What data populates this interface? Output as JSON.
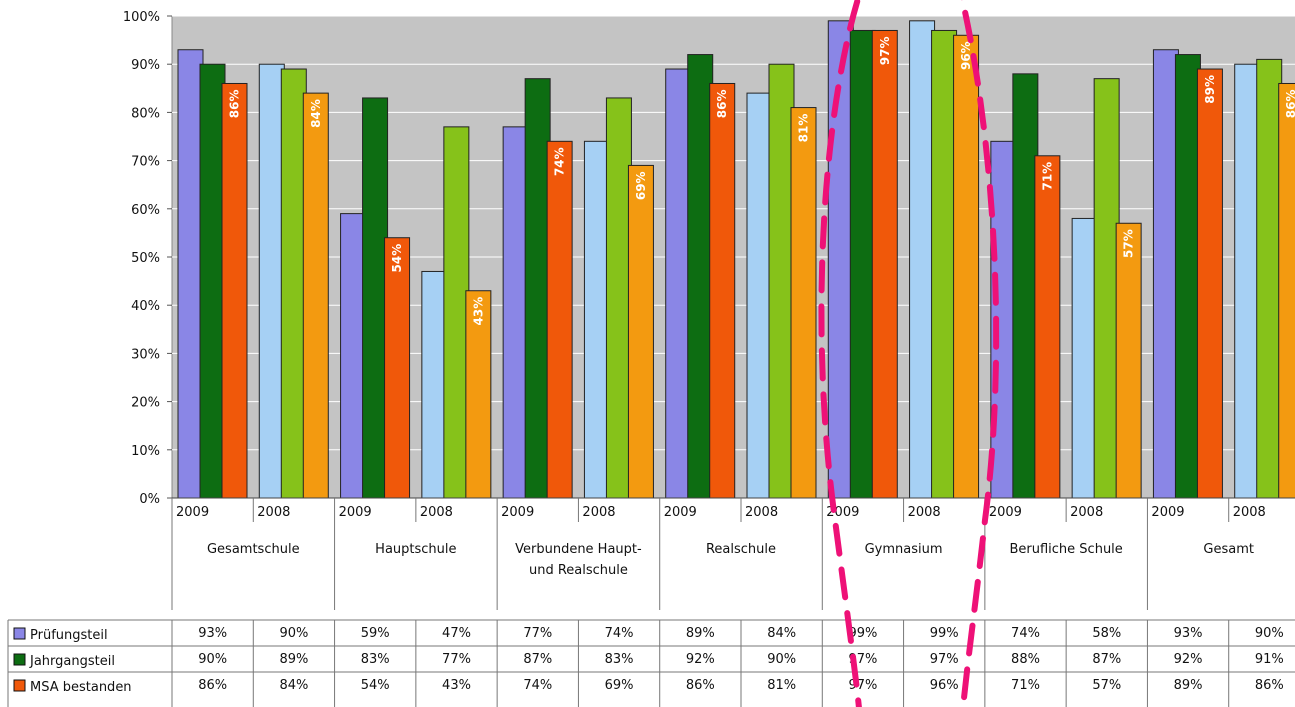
{
  "chart_data": {
    "type": "bar",
    "title": "",
    "xlabel": "",
    "ylabel": "",
    "ylim": [
      0,
      100
    ],
    "y_tick_labels": [
      "0%",
      "10%",
      "20%",
      "30%",
      "40%",
      "50%",
      "60%",
      "70%",
      "80%",
      "90%",
      "100%"
    ],
    "grid": true,
    "groups": [
      {
        "label": "Gesamtschule",
        "label_lines": [
          "Gesamtschule"
        ]
      },
      {
        "label": "Hauptschule",
        "label_lines": [
          "Hauptschule"
        ]
      },
      {
        "label": "Verbundene Haupt- und Realschule",
        "label_lines": [
          "Verbundene Haupt-",
          "und Realschule"
        ]
      },
      {
        "label": "Realschule",
        "label_lines": [
          "Realschule"
        ]
      },
      {
        "label": "Gymnasium",
        "label_lines": [
          "Gymnasium"
        ]
      },
      {
        "label": "Berufliche Schule",
        "label_lines": [
          "Berufliche Schule"
        ]
      },
      {
        "label": "Gesamt",
        "label_lines": [
          "Gesamt"
        ]
      }
    ],
    "categories": [
      "2009",
      "2008",
      "2009",
      "2008",
      "2009",
      "2008",
      "2009",
      "2008",
      "2009",
      "2008",
      "2009",
      "2008",
      "2009",
      "2008"
    ],
    "series": [
      {
        "name": "Prüfungsteil",
        "values": [
          93,
          90,
          59,
          47,
          77,
          74,
          89,
          84,
          99,
          99,
          74,
          58,
          93,
          90
        ],
        "color_2009": "#8a86e6",
        "color_2008": "#a6d0f4"
      },
      {
        "name": "Jahrgangsteil",
        "values": [
          90,
          89,
          83,
          77,
          87,
          83,
          92,
          90,
          97,
          97,
          88,
          87,
          92,
          91
        ],
        "color_2009": "#0d6d12",
        "color_2008": "#86c21a"
      },
      {
        "name": "MSA bestanden",
        "values": [
          86,
          84,
          54,
          43,
          74,
          69,
          86,
          81,
          97,
          96,
          71,
          57,
          89,
          86
        ],
        "color_2009": "#f0580a",
        "color_2008": "#f39a10"
      }
    ],
    "bar_value_labels": [
      "86%",
      "84%",
      "54%",
      "43%",
      "74%",
      "69%",
      "86%",
      "81%",
      "97%",
      "96%",
      "71%",
      "57%",
      "89%",
      "86%"
    ],
    "table": {
      "rows": [
        {
          "legend": "Prüfungsteil",
          "color": "#8a86e6",
          "cells": [
            "93%",
            "90%",
            "59%",
            "47%",
            "77%",
            "74%",
            "89%",
            "84%",
            "99%",
            "99%",
            "74%",
            "58%",
            "93%",
            "90%"
          ]
        },
        {
          "legend": "Jahrgangsteil",
          "color": "#0d6d12",
          "cells": [
            "90%",
            "89%",
            "83%",
            "77%",
            "87%",
            "83%",
            "92%",
            "90%",
            "97%",
            "97%",
            "88%",
            "87%",
            "92%",
            "91%"
          ]
        },
        {
          "legend": "MSA bestanden",
          "color": "#f0580a",
          "cells": [
            "86%",
            "84%",
            "54%",
            "43%",
            "74%",
            "69%",
            "86%",
            "81%",
            "97%",
            "96%",
            "71%",
            "57%",
            "89%",
            "86%"
          ]
        }
      ]
    },
    "annotation": {
      "type": "dashed-ellipse",
      "color": "#ee1177",
      "highlights": "Gymnasium"
    },
    "colors": {
      "plot_bg": "#c4c4c4",
      "grid": "#ffffff"
    }
  }
}
